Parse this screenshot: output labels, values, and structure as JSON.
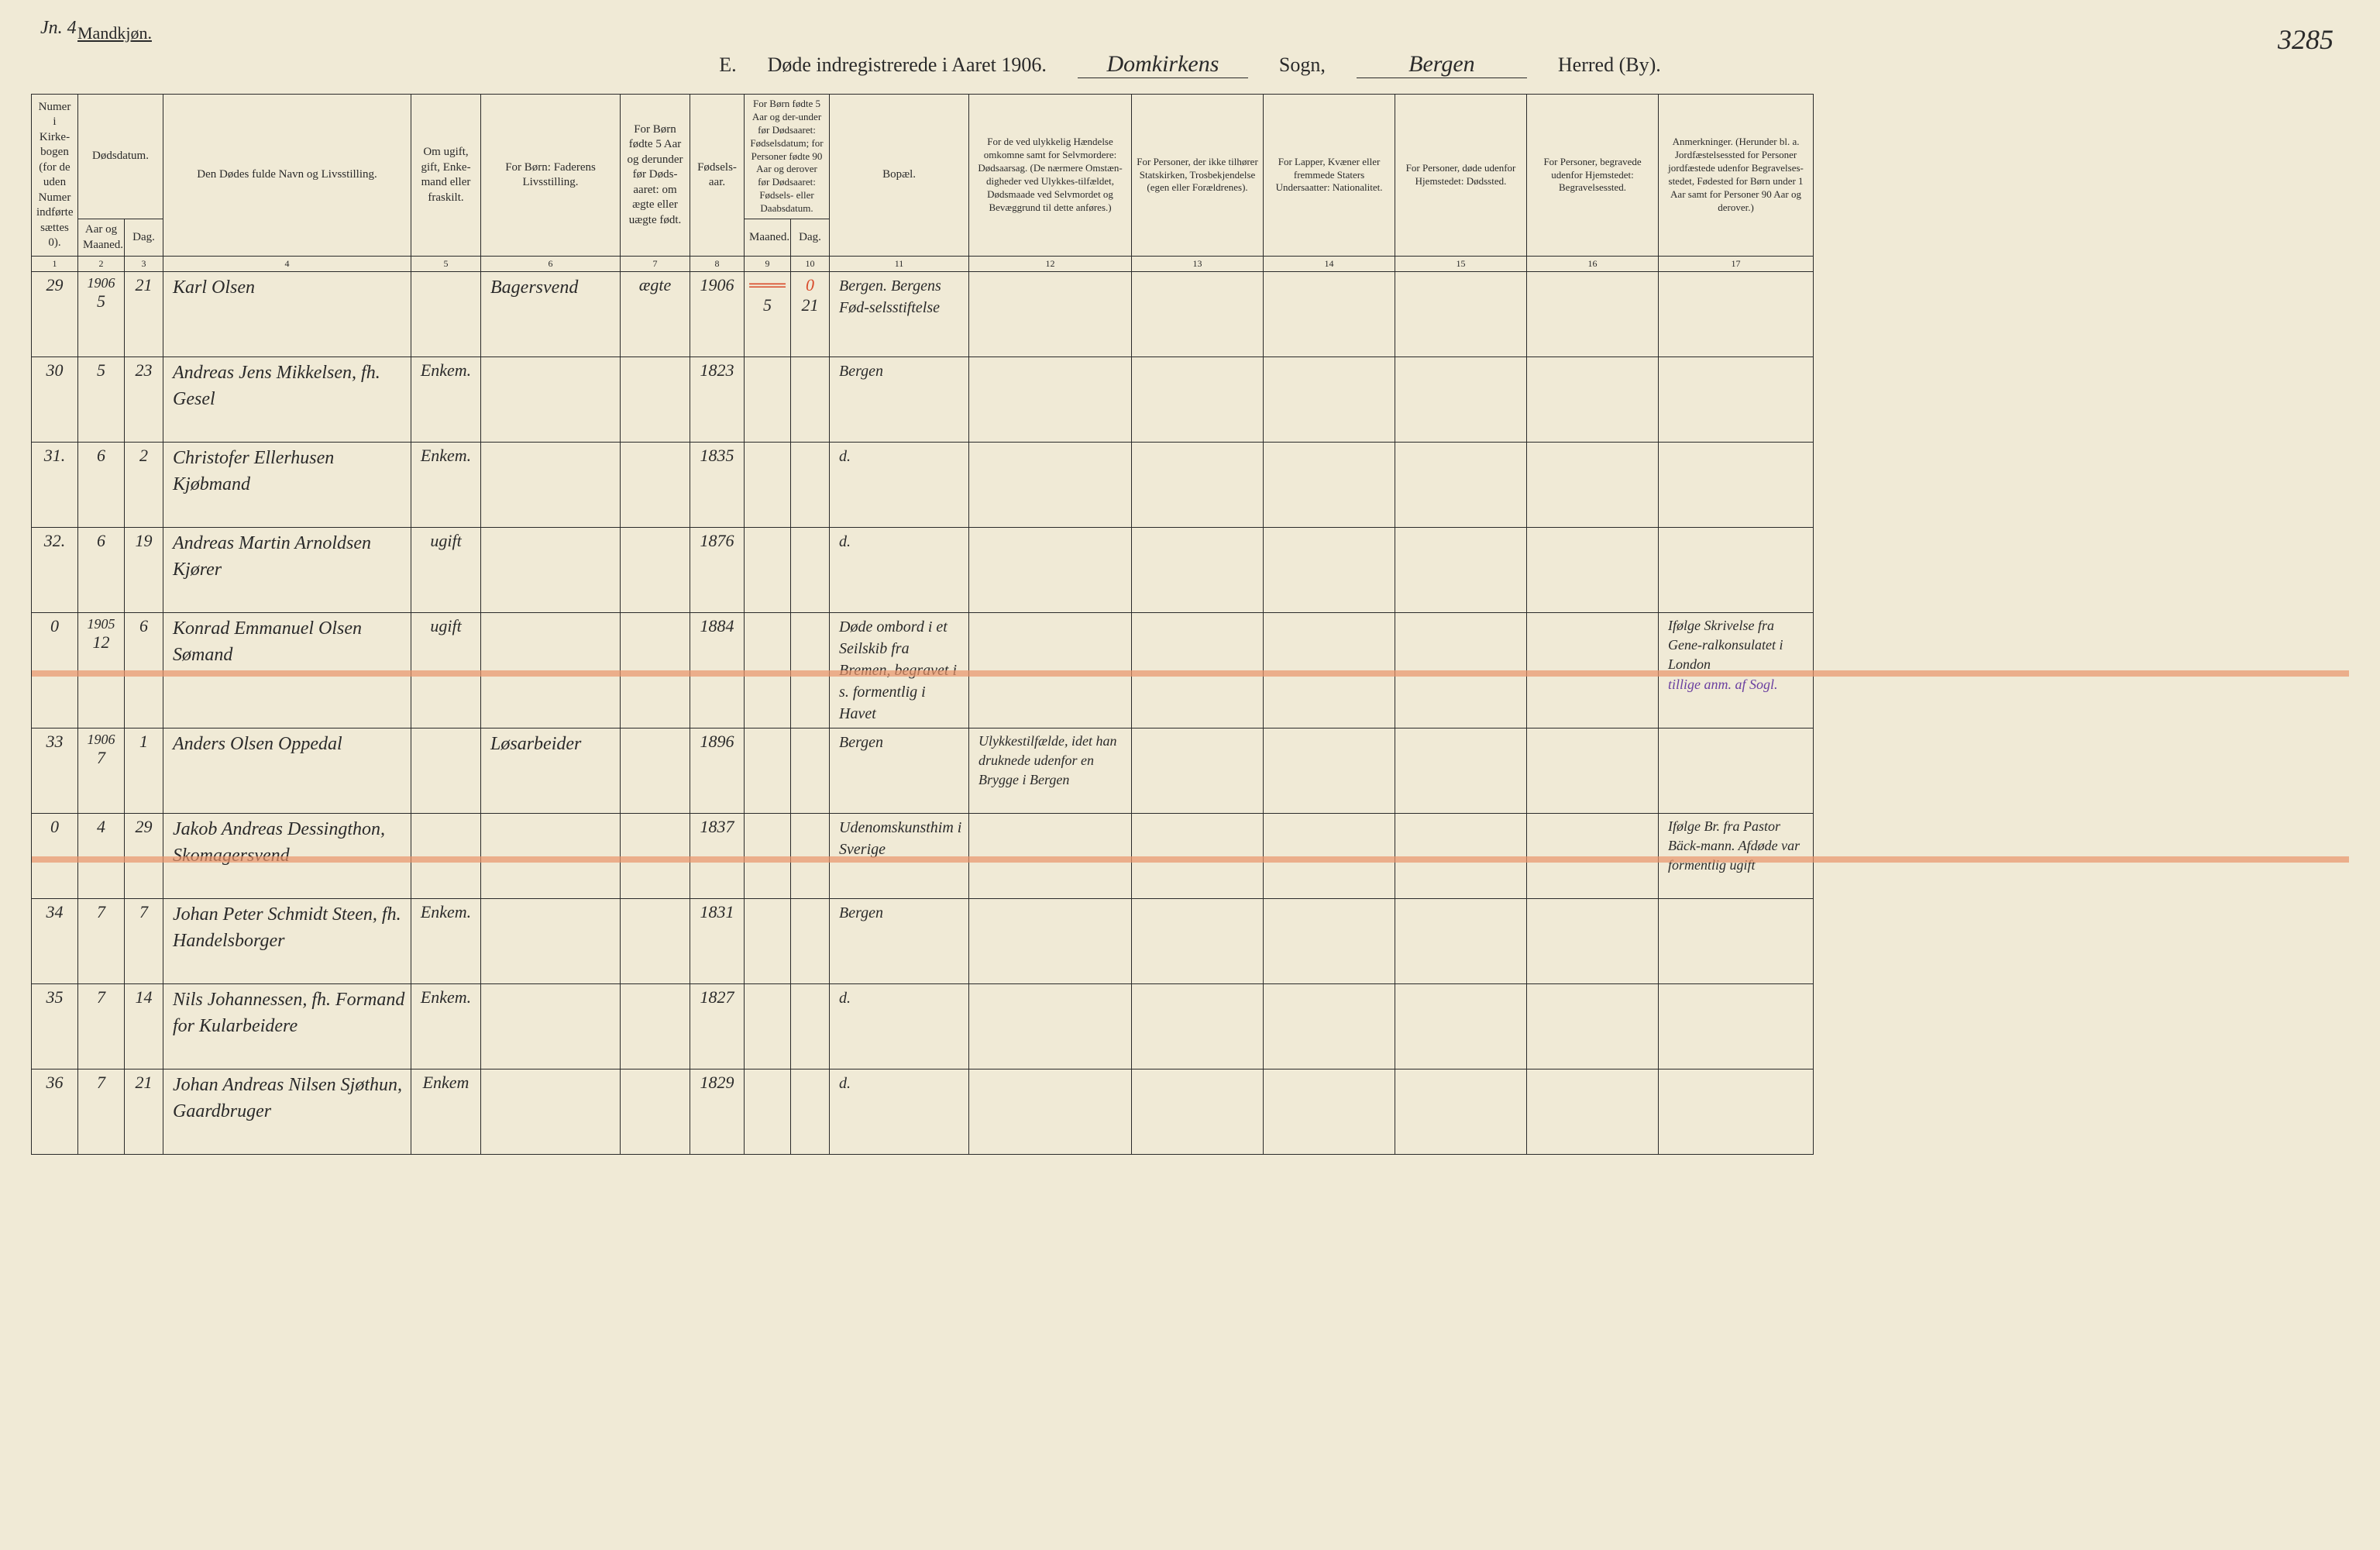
{
  "page_number_left": "Jn. 4",
  "page_number_right": "3285",
  "gender": "Mandkjøn.",
  "title": {
    "section": "E.",
    "main": "Døde indregistrerede i Aaret 1906.",
    "sogn_hand": "Domkirkens",
    "sogn_label": "Sogn,",
    "herred_hand": "Bergen",
    "herred_label": "Herred (By)."
  },
  "columns": {
    "c1": "Numer i Kirke-bogen (for de uden Numer indførte sættes 0).",
    "c2a": "Dødsdatum.",
    "c2b_aar": "Aar og Maaned.",
    "c2b_dag": "Dag.",
    "c4": "Den Dødes fulde Navn og Livsstilling.",
    "c5": "Om ugift, gift, Enke-mand eller fraskilt.",
    "c6": "For Børn: Faderens Livsstilling.",
    "c7": "For Børn fødte 5 Aar og derunder før Døds-aaret: om ægte eller uægte født.",
    "c8": "Fødsels-aar.",
    "c9_10": "For Børn fødte 5 Aar og der-under før Dødsaaret: Fødselsdatum; for Personer fødte 90 Aar og derover før Dødsaaret: Fødsels- eller Daabsdatum.",
    "c9": "Maaned.",
    "c10": "Dag.",
    "c11": "Bopæl.",
    "c12": "For de ved ulykkelig Hændelse omkomne samt for Selvmordere: Dødsaarsag. (De nærmere Omstæn-digheder ved Ulykkes-tilfældet, Dødsmaade ved Selvmordet og Bevæggrund til dette anføres.)",
    "c13": "For Personer, der ikke tilhører Statskirken, Trosbekjendelse (egen eller Forældrenes).",
    "c14": "For Lapper, Kvæner eller fremmede Staters Undersaatter: Nationalitet.",
    "c15": "For Personer, døde udenfor Hjemstedet: Dødssted.",
    "c16": "For Personer, begravede udenfor Hjemstedet: Begravelsessted.",
    "c17": "Anmerkninger. (Herunder bl. a. Jordfæstelsessted for Personer jordfæstede udenfor Begravelses-stedet, Fødested for Børn under 1 Aar samt for Personer 90 Aar og derover.)"
  },
  "col_nums": [
    "1",
    "2",
    "3",
    "4",
    "5",
    "6",
    "7",
    "8",
    "9",
    "10",
    "11",
    "12",
    "13",
    "14",
    "15",
    "16",
    "17"
  ],
  "year_header": "1906",
  "rows": [
    {
      "num": "29",
      "maaned": "5",
      "dag": "21",
      "navn": "Karl Olsen",
      "status": "",
      "faderen": "Bagersvend",
      "aegte": "ægte",
      "faar": "1906",
      "fm": "5",
      "fd": "21",
      "bopael": "Bergen. Bergens Fød-selsstiftelse",
      "ulykke": "",
      "tros": "",
      "nat": "",
      "doed": "",
      "begr": "",
      "anm": "",
      "red_top": "0"
    },
    {
      "num": "30",
      "maaned": "5",
      "dag": "23",
      "navn": "Andreas Jens Mikkelsen, fh. Gesel",
      "status": "Enkem.",
      "faderen": "",
      "aegte": "",
      "faar": "1823",
      "fm": "",
      "fd": "",
      "bopael": "Bergen",
      "ulykke": "",
      "tros": "",
      "nat": "",
      "doed": "",
      "begr": "",
      "anm": ""
    },
    {
      "num": "31.",
      "maaned": "6",
      "dag": "2",
      "navn": "Christofer Ellerhusen Kjøbmand",
      "status": "Enkem.",
      "faderen": "",
      "aegte": "",
      "faar": "1835",
      "fm": "",
      "fd": "",
      "bopael": "d.",
      "ulykke": "",
      "tros": "",
      "nat": "",
      "doed": "",
      "begr": "",
      "anm": ""
    },
    {
      "num": "32.",
      "maaned": "6",
      "dag": "19",
      "navn": "Andreas Martin Arnoldsen Kjører",
      "status": "ugift",
      "faderen": "",
      "aegte": "",
      "faar": "1876",
      "fm": "",
      "fd": "",
      "bopael": "d.",
      "ulykke": "",
      "tros": "",
      "nat": "",
      "doed": "",
      "begr": "",
      "anm": ""
    },
    {
      "num": "0",
      "maaned_pre": "1905",
      "maaned": "12",
      "dag": "6",
      "navn": "Konrad Emmanuel Olsen Sømand",
      "status": "ugift",
      "faderen": "",
      "aegte": "",
      "faar": "1884",
      "fm": "",
      "fd": "",
      "bopael": "Døde ombord i et Seilskib fra Bremen, begravet i s. formentlig i Havet",
      "ulykke": "",
      "tros": "",
      "nat": "",
      "doed": "",
      "begr": "",
      "anm": "Ifølge Skrivelse fra Gene-ralkonsulatet i London",
      "anm_purple": "tillige anm. af Sogl.",
      "strike": true
    },
    {
      "num": "33",
      "maaned_pre": "1906",
      "maaned": "7",
      "dag": "1",
      "navn": "Anders Olsen Oppedal",
      "status": "",
      "faderen": "Løsarbeider",
      "aegte": "",
      "faar": "1896",
      "fm": "",
      "fd": "",
      "bopael": "Bergen",
      "ulykke": "Ulykkestilfælde, idet han druknede udenfor en Brygge i Bergen",
      "tros": "",
      "nat": "",
      "doed": "",
      "begr": "",
      "anm": ""
    },
    {
      "num": "0",
      "maaned": "4",
      "dag": "29",
      "navn": "Jakob Andreas Dessingthon, Skomagersvend",
      "status": "",
      "faderen": "",
      "aegte": "",
      "faar": "1837",
      "fm": "",
      "fd": "",
      "bopael": "Udenomskunsthim i Sverige",
      "ulykke": "",
      "tros": "",
      "nat": "",
      "doed": "",
      "begr": "",
      "anm": "Ifølge Br. fra Pastor Bäck-mann. Afdøde var formentlig ugift",
      "strike": true
    },
    {
      "num": "34",
      "maaned": "7",
      "dag": "7",
      "navn": "Johan Peter Schmidt Steen, fh. Handelsborger",
      "status": "Enkem.",
      "faderen": "",
      "aegte": "",
      "faar": "1831",
      "fm": "",
      "fd": "",
      "bopael": "Bergen",
      "ulykke": "",
      "tros": "",
      "nat": "",
      "doed": "",
      "begr": "",
      "anm": ""
    },
    {
      "num": "35",
      "maaned": "7",
      "dag": "14",
      "navn": "Nils Johannessen, fh. Formand for Kularbeidere",
      "status": "Enkem.",
      "faderen": "",
      "aegte": "",
      "faar": "1827",
      "fm": "",
      "fd": "",
      "bopael": "d.",
      "ulykke": "",
      "tros": "",
      "nat": "",
      "doed": "",
      "begr": "",
      "anm": ""
    },
    {
      "num": "36",
      "maaned": "7",
      "dag": "21",
      "navn": "Johan Andreas Nilsen Sjøthun, Gaardbruger",
      "status": "Enkem",
      "faderen": "",
      "aegte": "",
      "faar": "1829",
      "fm": "",
      "fd": "",
      "bopael": "d.",
      "ulykke": "",
      "tros": "",
      "nat": "",
      "doed": "",
      "begr": "",
      "anm": ""
    }
  ]
}
